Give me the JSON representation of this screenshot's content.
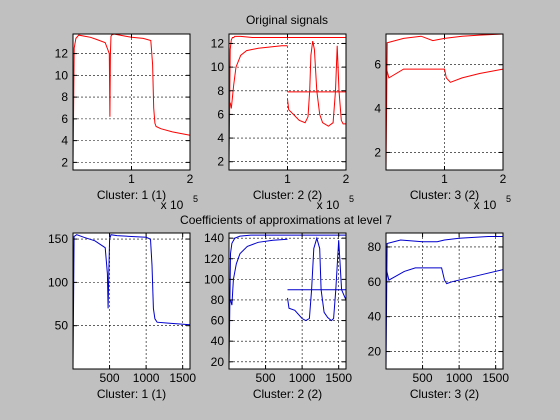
{
  "figure": {
    "title_top": "Original signals",
    "title_bottom": "Coefficients of approximations at level 7",
    "colors": {
      "background": "#c0c0c0",
      "axes_bg": "#ffffff",
      "top_series": "#ff0000",
      "bottom_series": "#0000cc",
      "grid": "#000000"
    }
  },
  "chart_data": [
    {
      "type": "line",
      "title": "Original signals",
      "xlabel": "Cluster: 1 (1)",
      "xlim": [
        0,
        2
      ],
      "x_exponent": "x 10",
      "x_exponent_power": "5",
      "xticks": [
        "1",
        "2"
      ],
      "ylim": [
        1.3,
        13.8
      ],
      "yticks": [
        "2",
        "4",
        "6",
        "8",
        "10",
        "12"
      ],
      "grid": true,
      "series": [
        {
          "color": "#ff0000",
          "x": [
            0,
            0.02,
            0.05,
            0.1,
            0.2,
            0.3,
            0.4,
            0.55,
            0.62,
            0.63,
            0.64,
            0.65,
            0.66,
            0.7,
            0.8,
            0.9,
            1.0,
            1.2,
            1.33,
            1.36,
            1.38,
            1.4,
            1.42,
            1.5,
            1.7,
            2.0
          ],
          "y": [
            1.3,
            12.5,
            13.4,
            13.7,
            13.6,
            13.5,
            13.3,
            13.0,
            12.0,
            6.2,
            12.0,
            13.6,
            13.7,
            13.8,
            13.7,
            13.6,
            13.5,
            13.4,
            13.2,
            11.0,
            7.0,
            5.6,
            5.3,
            5.1,
            4.8,
            4.5
          ]
        }
      ]
    },
    {
      "type": "line",
      "title": "",
      "xlabel": "Cluster: 2 (2)",
      "xlim": [
        0,
        2
      ],
      "x_exponent": "x 10",
      "x_exponent_power": "5",
      "xticks": [
        "1",
        "2"
      ],
      "ylim": [
        1.3,
        12.8
      ],
      "yticks": [
        "2",
        "4",
        "6",
        "8",
        "10",
        "12"
      ],
      "grid": true,
      "series": [
        {
          "color": "#ff0000",
          "x": [
            0,
            0.02,
            0.04,
            0.06,
            0.08,
            0.1,
            0.2,
            0.4,
            0.6,
            0.8,
            1.0,
            1.2,
            1.4,
            1.6,
            1.8,
            2.0
          ],
          "y": [
            1.3,
            11.5,
            12.3,
            12.5,
            12.5,
            12.6,
            12.6,
            12.5,
            12.5,
            12.5,
            12.5,
            12.5,
            12.5,
            12.5,
            12.5,
            12.5
          ]
        },
        {
          "color": "#ff0000",
          "x": [
            0.02,
            0.04,
            0.08,
            0.12,
            0.2,
            0.3,
            0.5,
            0.7,
            0.9,
            1.0
          ],
          "y": [
            7.0,
            6.5,
            8.5,
            10.0,
            11.0,
            11.4,
            11.6,
            11.7,
            11.8,
            11.8
          ]
        },
        {
          "color": "#ff0000",
          "x": [
            1.0,
            1.02,
            1.1,
            1.2,
            1.3,
            1.35,
            1.38,
            1.4,
            1.43,
            1.46,
            1.5,
            1.55,
            1.6,
            1.7,
            1.78,
            1.82,
            1.85,
            1.88,
            1.92,
            1.95,
            2.0
          ],
          "y": [
            7.3,
            6.4,
            6.0,
            5.5,
            5.3,
            5.8,
            8.0,
            11.0,
            12.2,
            11.5,
            8.0,
            6.0,
            5.3,
            5.0,
            5.3,
            8.0,
            11.8,
            8.0,
            5.5,
            5.2,
            5.2
          ]
        },
        {
          "color": "#ff0000",
          "x": [
            1.0,
            1.3,
            1.6,
            2.0
          ],
          "y": [
            7.9,
            7.9,
            7.9,
            7.9
          ]
        }
      ]
    },
    {
      "type": "line",
      "title": "",
      "xlabel": "Cluster: 3 (2)",
      "xlim": [
        0,
        2
      ],
      "x_exponent": "x 10",
      "x_exponent_power": "5",
      "xticks": [
        "1",
        "2"
      ],
      "ylim": [
        1.2,
        7.4
      ],
      "yticks": [
        "2",
        "4",
        "6"
      ],
      "grid": true,
      "series": [
        {
          "color": "#ff0000",
          "x": [
            0,
            0.02,
            0.3,
            0.6,
            0.8,
            1.0,
            1.3,
            1.6,
            2.0
          ],
          "y": [
            1.2,
            7.0,
            7.2,
            7.3,
            7.1,
            7.2,
            7.3,
            7.35,
            7.4
          ]
        },
        {
          "color": "#ff0000",
          "x": [
            0,
            0.05,
            0.3,
            0.5,
            0.7,
            1.0,
            1.03,
            1.1,
            1.3,
            1.6,
            2.0
          ],
          "y": [
            5.9,
            5.4,
            5.8,
            5.8,
            5.8,
            5.8,
            5.4,
            5.2,
            5.4,
            5.6,
            5.8
          ]
        }
      ]
    },
    {
      "type": "line",
      "title": "Coefficients of approximations at level 7",
      "xlabel": "Cluster: 1 (1)",
      "xlim": [
        0,
        1600
      ],
      "xticks": [
        "500",
        "1000",
        "1500"
      ],
      "ylim": [
        0,
        157
      ],
      "yticks": [
        "50",
        "100",
        "150"
      ],
      "grid": true,
      "series": [
        {
          "color": "#0000cc",
          "x": [
            0,
            15,
            50,
            150,
            300,
            440,
            470,
            480,
            490,
            500,
            520,
            600,
            800,
            1000,
            1060,
            1080,
            1100,
            1120,
            1150,
            1300,
            1600
          ],
          "y": [
            0,
            153,
            155,
            152,
            148,
            140,
            110,
            70,
            110,
            150,
            155,
            154,
            153,
            152,
            150,
            120,
            70,
            58,
            54,
            53,
            51
          ]
        }
      ]
    },
    {
      "type": "line",
      "title": "",
      "xlabel": "Cluster: 2 (2)",
      "xlim": [
        0,
        1600
      ],
      "xticks": [
        "500",
        "1000",
        "1500"
      ],
      "ylim": [
        13,
        145
      ],
      "yticks": [
        "20",
        "40",
        "60",
        "80",
        "100",
        "120",
        "140"
      ],
      "grid": true,
      "series": [
        {
          "color": "#0000cc",
          "x": [
            0,
            20,
            40,
            80,
            150,
            300,
            500,
            700,
            800,
            1000,
            1200,
            1400,
            1600
          ],
          "y": [
            13,
            125,
            135,
            140,
            142,
            143,
            143,
            143,
            143,
            143,
            143,
            143,
            143
          ]
        },
        {
          "color": "#0000cc",
          "x": [
            20,
            40,
            60,
            100,
            150,
            250,
            400,
            600,
            800
          ],
          "y": [
            80,
            75,
            100,
            115,
            125,
            132,
            136,
            138,
            139
          ]
        },
        {
          "color": "#0000cc",
          "x": [
            800,
            820,
            900,
            1000,
            1050,
            1100,
            1130,
            1160,
            1200,
            1240,
            1260,
            1300,
            1350,
            1400,
            1430,
            1460,
            1500,
            1540,
            1600
          ],
          "y": [
            82,
            72,
            70,
            62,
            60,
            62,
            90,
            130,
            140,
            130,
            90,
            68,
            63,
            60,
            62,
            90,
            138,
            90,
            80
          ]
        },
        {
          "color": "#0000cc",
          "x": [
            800,
            1000,
            1200,
            1400,
            1600
          ],
          "y": [
            90,
            90,
            90,
            90,
            90
          ]
        }
      ]
    },
    {
      "type": "line",
      "title": "",
      "xlabel": "Cluster: 3 (2)",
      "xlim": [
        0,
        1600
      ],
      "xticks": [
        "500",
        "1000",
        "1500"
      ],
      "ylim": [
        10,
        88
      ],
      "yticks": [
        "20",
        "40",
        "60",
        "80"
      ],
      "grid": true,
      "series": [
        {
          "color": "#0000cc",
          "x": [
            0,
            15,
            200,
            500,
            700,
            800,
            1000,
            1200,
            1400,
            1600
          ],
          "y": [
            10,
            82,
            84,
            83,
            83,
            84,
            85,
            85.5,
            86,
            86
          ]
        },
        {
          "color": "#0000cc",
          "x": [
            0,
            40,
            250,
            400,
            600,
            760,
            800,
            830,
            900,
            1100,
            1300,
            1600
          ],
          "y": [
            68,
            61,
            66,
            68,
            68,
            68,
            61,
            59,
            60,
            62,
            64,
            67
          ]
        }
      ]
    }
  ]
}
